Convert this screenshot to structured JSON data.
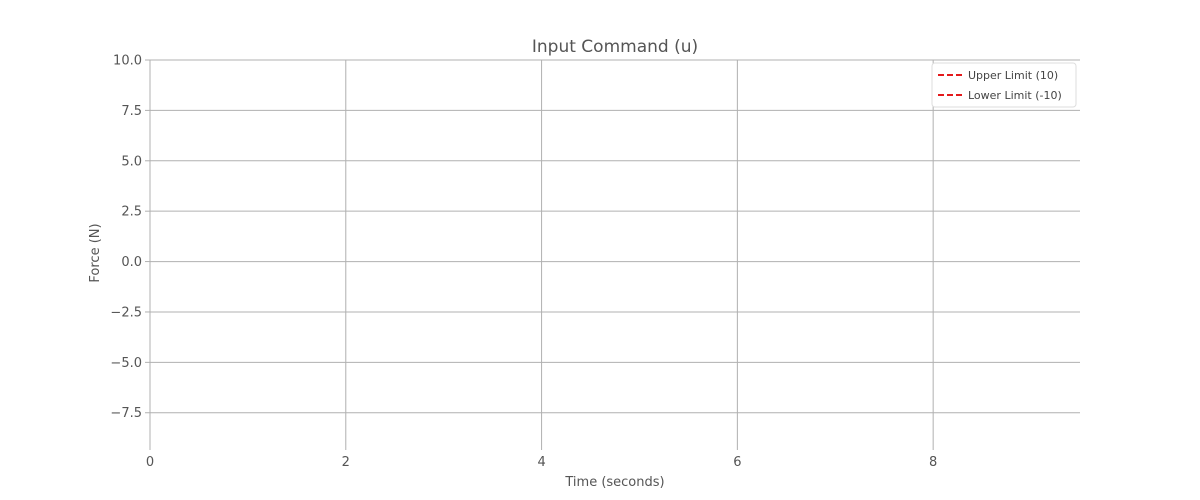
{
  "chart_data": {
    "type": "line",
    "title": "Input Command (u)",
    "xlabel": "Time (seconds)",
    "ylabel": "Force (N)",
    "xlim": [
      0,
      9.5
    ],
    "ylim": [
      -9.1,
      10
    ],
    "x_ticks": [
      0,
      2,
      4,
      6,
      8
    ],
    "x_tick_labels": [
      "0",
      "2",
      "4",
      "6",
      "8"
    ],
    "y_ticks": [
      10,
      7.5,
      5,
      2.5,
      0,
      -2.5,
      -5,
      -7.5
    ],
    "y_tick_labels": [
      "10.0",
      "7.5",
      "5.0",
      "2.5",
      "0.0",
      "−2.5",
      "−5.0",
      "−7.5"
    ],
    "grid": true,
    "legend_position": "top-right",
    "series": [
      {
        "name": "Upper Limit (10)",
        "style": "dashed",
        "color": "#e31a1c",
        "values": []
      },
      {
        "name": "Lower Limit (-10)",
        "style": "dashed",
        "color": "#e31a1c",
        "values": []
      }
    ]
  }
}
